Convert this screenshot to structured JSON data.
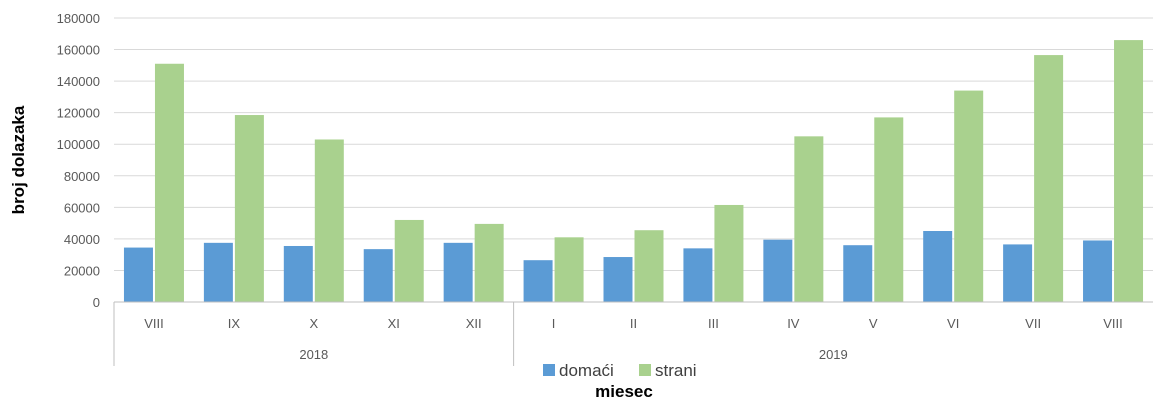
{
  "chart_data": {
    "type": "bar",
    "ylabel": "broj dolazaka",
    "xlabel": "miesec",
    "ylim": [
      0,
      180000
    ],
    "ytick_step": 20000,
    "grid": true,
    "legend_position": "bottom",
    "categories": [
      "VIII",
      "IX",
      "X",
      "XI",
      "XII",
      "I",
      "II",
      "III",
      "IV",
      "V",
      "VI",
      "VII",
      "VIII"
    ],
    "groups": [
      {
        "label": "2018",
        "count": 5
      },
      {
        "label": "2019",
        "count": 8
      }
    ],
    "series": [
      {
        "name": "domaći",
        "color": "#5b9bd5",
        "values": [
          34500,
          37500,
          35500,
          33500,
          37500,
          26500,
          28500,
          34000,
          39500,
          36000,
          45000,
          36500,
          39000
        ]
      },
      {
        "name": "strani",
        "color": "#a9d18e",
        "values": [
          151000,
          118500,
          103000,
          52000,
          49500,
          41000,
          45500,
          61500,
          105000,
          117000,
          134000,
          156500,
          166000
        ]
      }
    ]
  }
}
